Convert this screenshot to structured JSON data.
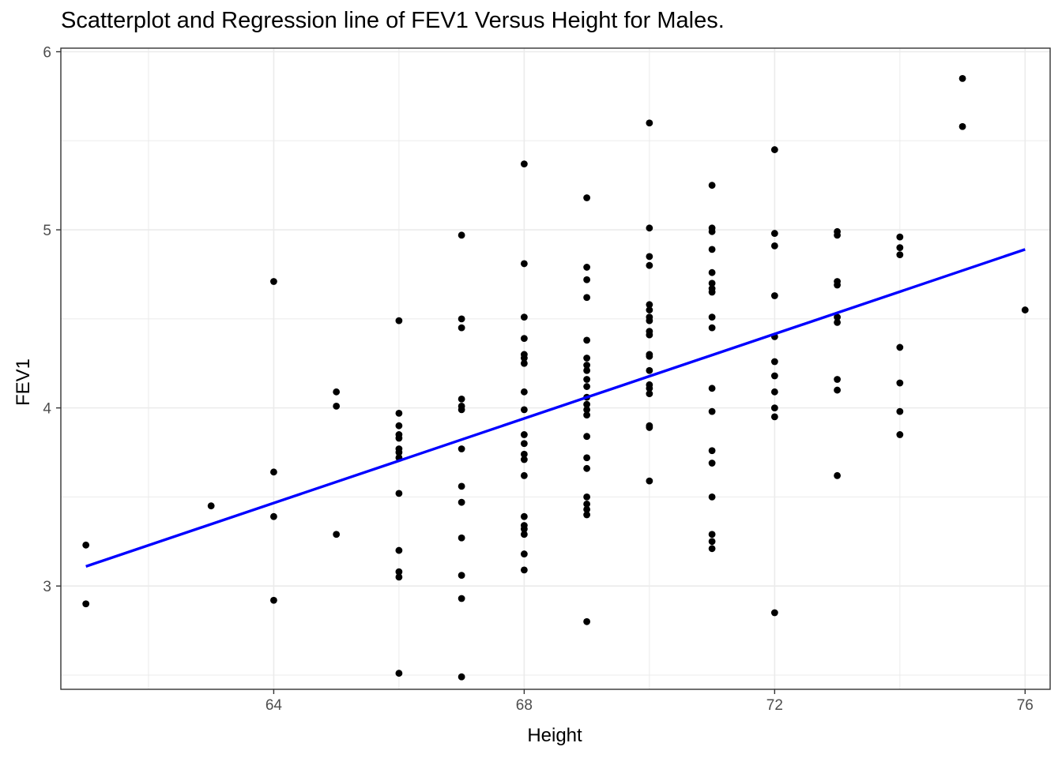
{
  "chart_data": {
    "type": "scatter",
    "title": "Scatterplot and Regression line of FEV1 Versus Height for Males.",
    "xlabel": "Height",
    "ylabel": "FEV1",
    "xlim": [
      60.6,
      76.4
    ],
    "ylim": [
      2.42,
      6.02
    ],
    "xticks": [
      64,
      68,
      72,
      76
    ],
    "yticks": [
      3,
      4,
      5,
      6
    ],
    "x_minor": [
      62,
      66,
      70,
      74
    ],
    "y_minor": [
      2.5,
      3.5,
      4.5,
      5.5
    ],
    "grid": true,
    "colors": {
      "points": "#000000",
      "regression": "#0000ff",
      "grid": "#ebebeb",
      "panel_border": "#333333"
    },
    "regression_line": {
      "x": [
        61,
        76
      ],
      "y": [
        3.11,
        4.89
      ]
    },
    "points": [
      [
        61,
        3.23
      ],
      [
        61,
        2.9
      ],
      [
        63,
        3.45
      ],
      [
        64,
        4.71
      ],
      [
        64,
        3.64
      ],
      [
        64,
        3.39
      ],
      [
        64,
        2.92
      ],
      [
        65,
        4.09
      ],
      [
        65,
        4.01
      ],
      [
        65,
        3.29
      ],
      [
        66,
        4.49
      ],
      [
        66,
        3.97
      ],
      [
        66,
        3.9
      ],
      [
        66,
        3.85
      ],
      [
        66,
        3.83
      ],
      [
        66,
        3.77
      ],
      [
        66,
        3.75
      ],
      [
        66,
        3.72
      ],
      [
        66,
        3.52
      ],
      [
        66,
        3.2
      ],
      [
        66,
        3.08
      ],
      [
        66,
        3.05
      ],
      [
        66,
        2.51
      ],
      [
        67,
        4.97
      ],
      [
        67,
        4.5
      ],
      [
        67,
        4.45
      ],
      [
        67,
        4.05
      ],
      [
        67,
        4.01
      ],
      [
        67,
        3.99
      ],
      [
        67,
        3.77
      ],
      [
        67,
        3.56
      ],
      [
        67,
        3.47
      ],
      [
        67,
        3.27
      ],
      [
        67,
        3.06
      ],
      [
        67,
        2.93
      ],
      [
        67,
        2.49
      ],
      [
        68,
        5.37
      ],
      [
        68,
        4.81
      ],
      [
        68,
        4.51
      ],
      [
        68,
        4.39
      ],
      [
        68,
        4.3
      ],
      [
        68,
        4.28
      ],
      [
        68,
        4.25
      ],
      [
        68,
        4.09
      ],
      [
        68,
        3.99
      ],
      [
        68,
        3.85
      ],
      [
        68,
        3.8
      ],
      [
        68,
        3.74
      ],
      [
        68,
        3.71
      ],
      [
        68,
        3.62
      ],
      [
        68,
        3.39
      ],
      [
        68,
        3.34
      ],
      [
        68,
        3.32
      ],
      [
        68,
        3.29
      ],
      [
        68,
        3.18
      ],
      [
        68,
        3.09
      ],
      [
        69,
        5.18
      ],
      [
        69,
        4.79
      ],
      [
        69,
        4.72
      ],
      [
        69,
        4.62
      ],
      [
        69,
        4.38
      ],
      [
        69,
        4.28
      ],
      [
        69,
        4.24
      ],
      [
        69,
        4.21
      ],
      [
        69,
        4.16
      ],
      [
        69,
        4.12
      ],
      [
        69,
        4.06
      ],
      [
        69,
        4.02
      ],
      [
        69,
        3.99
      ],
      [
        69,
        3.96
      ],
      [
        69,
        3.84
      ],
      [
        69,
        3.72
      ],
      [
        69,
        3.66
      ],
      [
        69,
        3.5
      ],
      [
        69,
        3.46
      ],
      [
        69,
        3.43
      ],
      [
        69,
        3.4
      ],
      [
        69,
        2.8
      ],
      [
        70,
        5.6
      ],
      [
        70,
        5.01
      ],
      [
        70,
        4.85
      ],
      [
        70,
        4.8
      ],
      [
        70,
        4.58
      ],
      [
        70,
        4.55
      ],
      [
        70,
        4.51
      ],
      [
        70,
        4.49
      ],
      [
        70,
        4.43
      ],
      [
        70,
        4.41
      ],
      [
        70,
        4.3
      ],
      [
        70,
        4.29
      ],
      [
        70,
        4.21
      ],
      [
        70,
        4.13
      ],
      [
        70,
        4.11
      ],
      [
        70,
        4.08
      ],
      [
        70,
        3.9
      ],
      [
        70,
        3.89
      ],
      [
        70,
        3.59
      ],
      [
        71,
        5.25
      ],
      [
        71,
        5.01
      ],
      [
        71,
        4.99
      ],
      [
        71,
        4.89
      ],
      [
        71,
        4.76
      ],
      [
        71,
        4.7
      ],
      [
        71,
        4.67
      ],
      [
        71,
        4.65
      ],
      [
        71,
        4.51
      ],
      [
        71,
        4.45
      ],
      [
        71,
        4.11
      ],
      [
        71,
        3.98
      ],
      [
        71,
        3.76
      ],
      [
        71,
        3.69
      ],
      [
        71,
        3.5
      ],
      [
        71,
        3.29
      ],
      [
        71,
        3.25
      ],
      [
        71,
        3.21
      ],
      [
        72,
        5.45
      ],
      [
        72,
        4.98
      ],
      [
        72,
        4.91
      ],
      [
        72,
        4.63
      ],
      [
        72,
        4.4
      ],
      [
        72,
        4.26
      ],
      [
        72,
        4.18
      ],
      [
        72,
        4.09
      ],
      [
        72,
        4.0
      ],
      [
        72,
        3.95
      ],
      [
        72,
        2.85
      ],
      [
        73,
        4.99
      ],
      [
        73,
        4.97
      ],
      [
        73,
        4.71
      ],
      [
        73,
        4.69
      ],
      [
        73,
        4.51
      ],
      [
        73,
        4.48
      ],
      [
        73,
        4.16
      ],
      [
        73,
        4.1
      ],
      [
        73,
        3.62
      ],
      [
        74,
        4.96
      ],
      [
        74,
        4.9
      ],
      [
        74,
        4.86
      ],
      [
        74,
        4.34
      ],
      [
        74,
        4.14
      ],
      [
        74,
        3.98
      ],
      [
        74,
        3.85
      ],
      [
        75,
        5.85
      ],
      [
        75,
        5.58
      ],
      [
        76,
        4.55
      ]
    ]
  }
}
